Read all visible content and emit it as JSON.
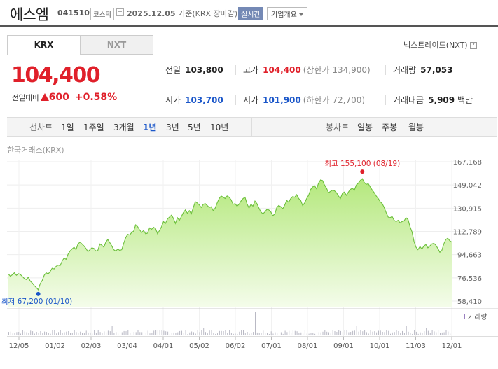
{
  "header": {
    "name": "에스엠",
    "code": "041510",
    "market": "코스닥",
    "date": "2025.12.05",
    "date_suffix": "기준(KRX 장마감)",
    "realtime": "실시간",
    "company_btn": "기업개요"
  },
  "tabs": {
    "krx": "KRX",
    "nxt": "NXT"
  },
  "nxt_link": "넥스트레이드(NXT)",
  "help_glyph": "?",
  "price": {
    "current": "104,400",
    "diff_label": "전일대비",
    "diff": "600",
    "pct": "+0.58%"
  },
  "stats": {
    "prev_label": "전일",
    "prev": "103,800",
    "high_label": "고가",
    "high": "104,400",
    "upper": "(상한가 134,900)",
    "vol_label": "거래량",
    "vol": "57,053",
    "open_label": "시가",
    "open": "103,700",
    "low_label": "저가",
    "low": "101,900",
    "lower": "(하한가 72,700)",
    "amt_label": "거래대금",
    "amt": "5,909",
    "amt_unit": "백만"
  },
  "period": {
    "label": "선차트",
    "items": [
      "1일",
      "1주일",
      "3개월",
      "1년",
      "3년",
      "5년",
      "10년"
    ],
    "active": "1년",
    "candle_label": "봉차트",
    "candles": [
      "일봉",
      "주봉",
      "월봉"
    ]
  },
  "chart_source": "한국거래소(KRX)",
  "colors": {
    "up": "#e0202a",
    "down": "#1a56c9",
    "line": "#6bbf3a",
    "fill": "#c8eea2"
  },
  "chart_data": {
    "type": "area",
    "x_ticks": [
      "12/05",
      "01/02",
      "02/03",
      "03/04",
      "04/01",
      "05/02",
      "06/02",
      "07/01",
      "08/01",
      "09/01",
      "10/01",
      "11/03",
      "12/01"
    ],
    "y_ticks": [
      "167,168",
      "149,042",
      "130,915",
      "112,789",
      "94,663",
      "76,536",
      "58,410"
    ],
    "ylim": [
      58410,
      167168
    ],
    "max_label": "최고 155,100 (08/19)",
    "min_label": "최저 67,200 (01/10)",
    "volume_label": "거래량",
    "values": [
      79500,
      77800,
      79000,
      80500,
      78500,
      79800,
      79200,
      77600,
      76000,
      75200,
      77000,
      74000,
      72500,
      70500,
      69000,
      67200,
      72000,
      74500,
      78500,
      80500,
      79500,
      81500,
      84000,
      83500,
      85500,
      86500,
      86000,
      89500,
      92000,
      91000,
      95000,
      97500,
      99000,
      100500,
      98500,
      103000,
      104500,
      103000,
      101500,
      99500,
      97000,
      98500,
      100000,
      99500,
      97500,
      98000,
      103000,
      102000,
      100500,
      104500,
      106500,
      104000,
      101500,
      98500,
      97500,
      99000,
      98000,
      98500,
      103500,
      108000,
      110500,
      110000,
      112000,
      113000,
      118000,
      116500,
      114000,
      112000,
      113500,
      111000,
      111500,
      115500,
      114500,
      116000,
      115000,
      111000,
      113500,
      116500,
      120500,
      119000,
      122500,
      124000,
      125500,
      123000,
      119000,
      123500,
      121500,
      124500,
      127500,
      129500,
      127000,
      129000,
      126500,
      131500,
      136000,
      135000,
      133500,
      131500,
      134000,
      134500,
      133000,
      131500,
      132000,
      129000,
      131000,
      135000,
      138500,
      140500,
      139500,
      138500,
      140500,
      139500,
      137500,
      134000,
      134500,
      132500,
      134000,
      136500,
      138500,
      139500,
      134500,
      131000,
      134000,
      132500,
      136500,
      134500,
      131000,
      128000,
      126500,
      128000,
      130000,
      129500,
      128000,
      125000,
      126500,
      131500,
      133000,
      132000,
      130500,
      133500,
      137000,
      135500,
      138500,
      140000,
      139500,
      141500,
      138500,
      137000,
      133000,
      135000,
      138500,
      141000,
      145500,
      147500,
      148500,
      146000,
      150500,
      153000,
      152500,
      149000,
      146500,
      143000,
      144000,
      145000,
      144500,
      143000,
      140500,
      138500,
      142500,
      143500,
      141000,
      143500,
      145500,
      146500,
      145000,
      149000,
      150500,
      152500,
      154000,
      151000,
      149500,
      150000,
      147500,
      145000,
      143000,
      140500,
      138500,
      136000,
      134500,
      131500,
      127500,
      124000,
      123500,
      124500,
      121500,
      120500,
      121500,
      119500,
      120500,
      121000,
      123500,
      122000,
      116500,
      112500,
      105000,
      100500,
      98500,
      101000,
      99000,
      101500,
      102500,
      100000,
      101500,
      103000,
      103500,
      102000,
      99500,
      96500,
      98000,
      103000,
      106500,
      107500,
      105500,
      104500
    ]
  }
}
